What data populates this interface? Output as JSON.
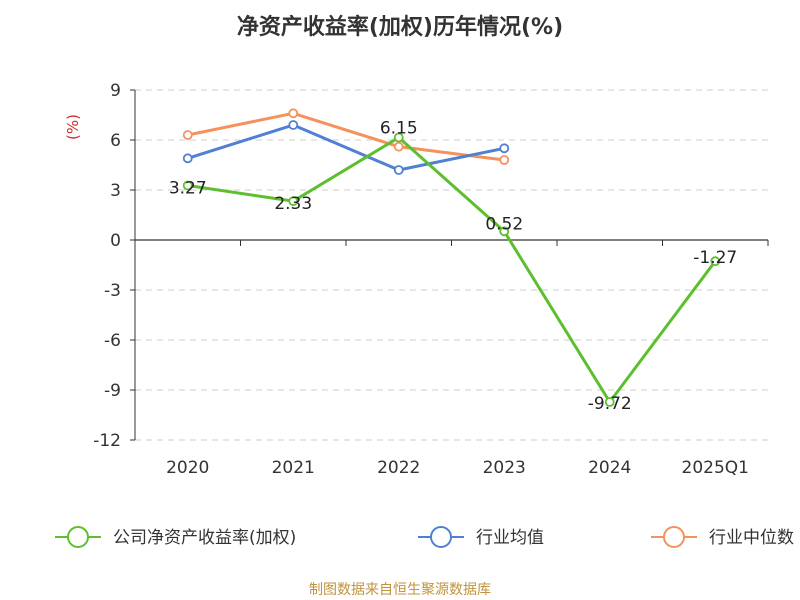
{
  "chart_data": {
    "type": "line",
    "title": "净资产收益率(加权)历年情况(%)",
    "ylabel": "(%)",
    "categories": [
      "2020",
      "2021",
      "2022",
      "2023",
      "2024",
      "2025Q1"
    ],
    "yticks": [
      "9",
      "6",
      "3",
      "0",
      "-3",
      "-6",
      "-9",
      "-12"
    ],
    "ylim": [
      -12,
      9
    ],
    "grid": true,
    "legend_position": "bottom",
    "series": [
      {
        "name": "公司净资产收益率(加权)",
        "color": "#5dbf2e",
        "values": [
          3.27,
          2.33,
          6.15,
          0.52,
          -9.72,
          -1.27
        ],
        "labels": [
          "3.27",
          "2.33",
          "6.15",
          "0.52",
          "-9.72",
          "-1.27"
        ]
      },
      {
        "name": "行业均值",
        "color": "#4f80d4",
        "values": [
          4.9,
          6.9,
          4.2,
          5.5,
          null,
          null
        ]
      },
      {
        "name": "行业中位数",
        "color": "#f5915c",
        "values": [
          6.3,
          7.6,
          5.6,
          4.8,
          null,
          null
        ]
      }
    ],
    "source": "制图数据来自恒生聚源数据库"
  }
}
